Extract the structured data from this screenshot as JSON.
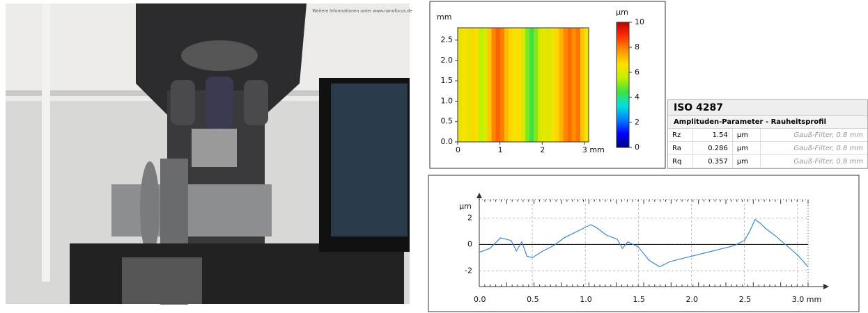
{
  "photo": {
    "caption": "Weitere Informationen unter www.nanofocus.de"
  },
  "chart_data": [
    {
      "type": "heatmap",
      "x_label": "mm",
      "colorbar_label": "µm",
      "x": [
        0.05,
        0.15,
        0.25,
        0.35,
        0.45,
        0.55,
        0.65,
        0.75,
        0.85,
        0.95,
        1.05,
        1.15,
        1.25,
        1.35,
        1.45,
        1.55,
        1.65,
        1.75,
        1.85,
        1.95,
        2.05,
        2.15,
        2.25,
        2.35,
        2.45,
        2.55,
        2.65,
        2.75,
        2.85,
        2.95,
        3.05
      ],
      "values": [
        6.3,
        6.6,
        6.2,
        6.8,
        6.4,
        5.6,
        6.0,
        7.0,
        7.9,
        8.3,
        8.0,
        7.2,
        6.8,
        6.5,
        6.7,
        6.0,
        5.0,
        4.4,
        5.0,
        6.0,
        6.3,
        6.0,
        6.4,
        6.8,
        7.3,
        7.9,
        8.2,
        7.8,
        8.1,
        7.0,
        6.4
      ],
      "xlim": [
        0,
        3.1
      ],
      "xticks": [
        0,
        1,
        2,
        {
          "value": 3,
          "label": "3 mm"
        }
      ],
      "ylim": [
        0,
        2.8
      ],
      "yticks": [
        {
          "value": 0,
          "label": "0.0"
        },
        {
          "value": 0.5,
          "label": "0.5"
        },
        {
          "value": 1,
          "label": "1.0"
        },
        {
          "value": 1.5,
          "label": "1.5"
        },
        {
          "value": 2,
          "label": "2.0"
        },
        {
          "value": 2.5,
          "label": "2.5"
        }
      ],
      "zlim": [
        0,
        10
      ],
      "zticks": [
        0,
        2,
        4,
        6,
        8,
        10
      ],
      "colorscale": [
        "#000080",
        "#0000ff",
        "#0080ff",
        "#00e0e0",
        "#40e040",
        "#c0f000",
        "#ffe000",
        "#ff9000",
        "#ff3000",
        "#c00000"
      ]
    },
    {
      "type": "line",
      "y_label": "µm",
      "color": "#3a86d4",
      "x": [
        0,
        0.1,
        0.2,
        0.3,
        0.35,
        0.4,
        0.45,
        0.5,
        0.6,
        0.7,
        0.8,
        0.9,
        1.0,
        1.05,
        1.1,
        1.2,
        1.3,
        1.35,
        1.4,
        1.5,
        1.6,
        1.7,
        1.8,
        1.9,
        2.0,
        2.1,
        2.2,
        2.3,
        2.4,
        2.5,
        2.55,
        2.6,
        2.65,
        2.7,
        2.8,
        2.9,
        3.0,
        3.1
      ],
      "values": [
        -0.6,
        -0.3,
        0.5,
        0.3,
        -0.5,
        0.2,
        -0.9,
        -1.0,
        -0.5,
        -0.1,
        0.5,
        0.9,
        1.3,
        1.5,
        1.3,
        0.7,
        0.4,
        -0.3,
        0.2,
        -0.2,
        -1.2,
        -1.7,
        -1.3,
        -1.1,
        -0.9,
        -0.7,
        -0.5,
        -0.3,
        -0.1,
        0.3,
        1.0,
        1.9,
        1.6,
        1.2,
        0.6,
        -0.1,
        -0.8,
        -1.7
      ],
      "xlim": [
        0,
        3.1
      ],
      "xticks": [
        {
          "value": 0,
          "label": "0.0"
        },
        {
          "value": 0.5,
          "label": "0.5"
        },
        {
          "value": 1,
          "label": "1.0"
        },
        {
          "value": 1.5,
          "label": "1.5"
        },
        {
          "value": 2,
          "label": "2.0"
        },
        {
          "value": 2.5,
          "label": "2.5"
        },
        {
          "value": 3,
          "label": "3.0 mm"
        }
      ],
      "ylim": [
        -3.2,
        3.4
      ],
      "yticks": [
        -2,
        0,
        2
      ],
      "grid": true
    }
  ],
  "table": {
    "title": "ISO 4287",
    "subtitle": "Amplituden-Parameter - Rauheitsprofil",
    "rows": [
      [
        "Rz",
        "1.54",
        "µm",
        "Gauß-Filter, 0.8 mm"
      ],
      [
        "Ra",
        "0.286",
        "µm",
        "Gauß-Filter, 0.8 mm"
      ],
      [
        "Rq",
        "0.357",
        "µm",
        "Gauß-Filter, 0.8 mm"
      ]
    ]
  }
}
